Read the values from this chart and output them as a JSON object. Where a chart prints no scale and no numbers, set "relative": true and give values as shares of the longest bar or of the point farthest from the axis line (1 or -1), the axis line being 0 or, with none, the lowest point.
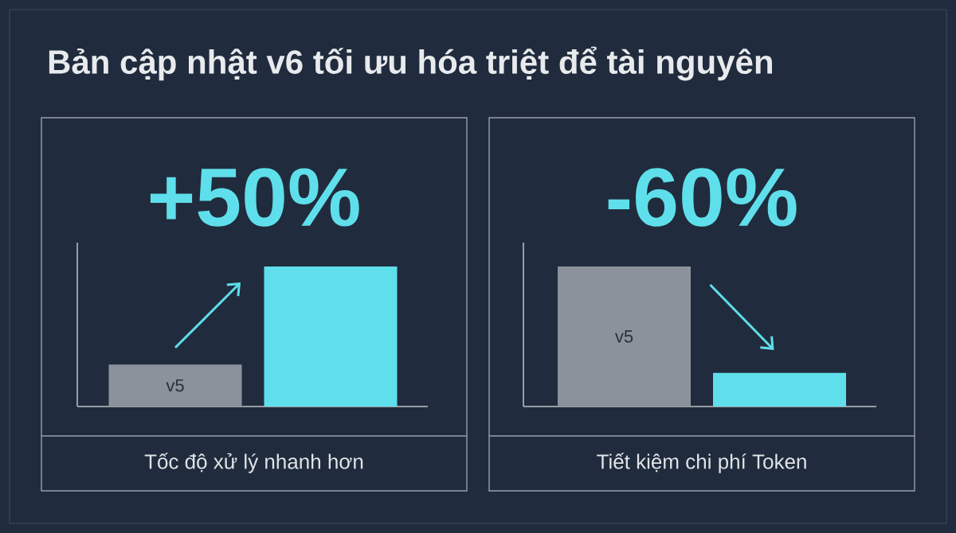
{
  "chart_data": [
    {
      "type": "bar",
      "relative": true,
      "title": "Bản cập nhật v6 tối ưu hóa triệt để tài nguyên",
      "annotations": [
        "+50%"
      ],
      "xlabel": "Tốc độ xử lý nhanh hơn",
      "categories": [
        "v5",
        null
      ],
      "values": [
        0.3,
        1
      ],
      "colors": [
        "#8b929b",
        "#5fdfeb"
      ]
    },
    {
      "type": "bar",
      "relative": true,
      "annotations": [
        "-60%"
      ],
      "xlabel": "Tiết kiệm chi phí Token",
      "categories": [
        "v5",
        null
      ],
      "values": [
        1,
        0.24
      ],
      "colors": [
        "#8b929b",
        "#5fdfeb"
      ]
    }
  ]
}
